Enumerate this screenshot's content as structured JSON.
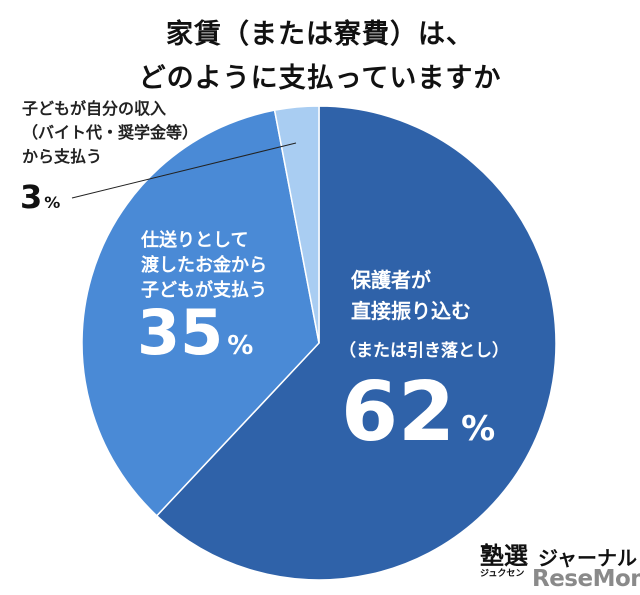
{
  "title": {
    "line1": "家賃（または寮費）は、",
    "line2": "どのように支払っていますか"
  },
  "chart_data": {
    "type": "pie",
    "title": "家賃（または寮費）は、どのように支払っていますか",
    "unit": "%",
    "slices": [
      {
        "label_lines": [
          "保護者が",
          "直接振り込む"
        ],
        "sub_label": "（または引き落とし）",
        "value": 62,
        "color": "#2f62a9"
      },
      {
        "label_lines": [
          "仕送りとして",
          "渡したお金から",
          "子どもが支払う"
        ],
        "value": 35,
        "color": "#4a8ad6"
      },
      {
        "label_lines": [
          "子どもが自分の収入",
          "（バイト代・奨学金等）",
          "から支払う"
        ],
        "value": 3,
        "color": "#a9cdf2"
      }
    ]
  },
  "logo": {
    "kanji": "塾選",
    "kana": "ジャーナル",
    "small": "ジュクセン",
    "resemom": "ReseMom"
  }
}
